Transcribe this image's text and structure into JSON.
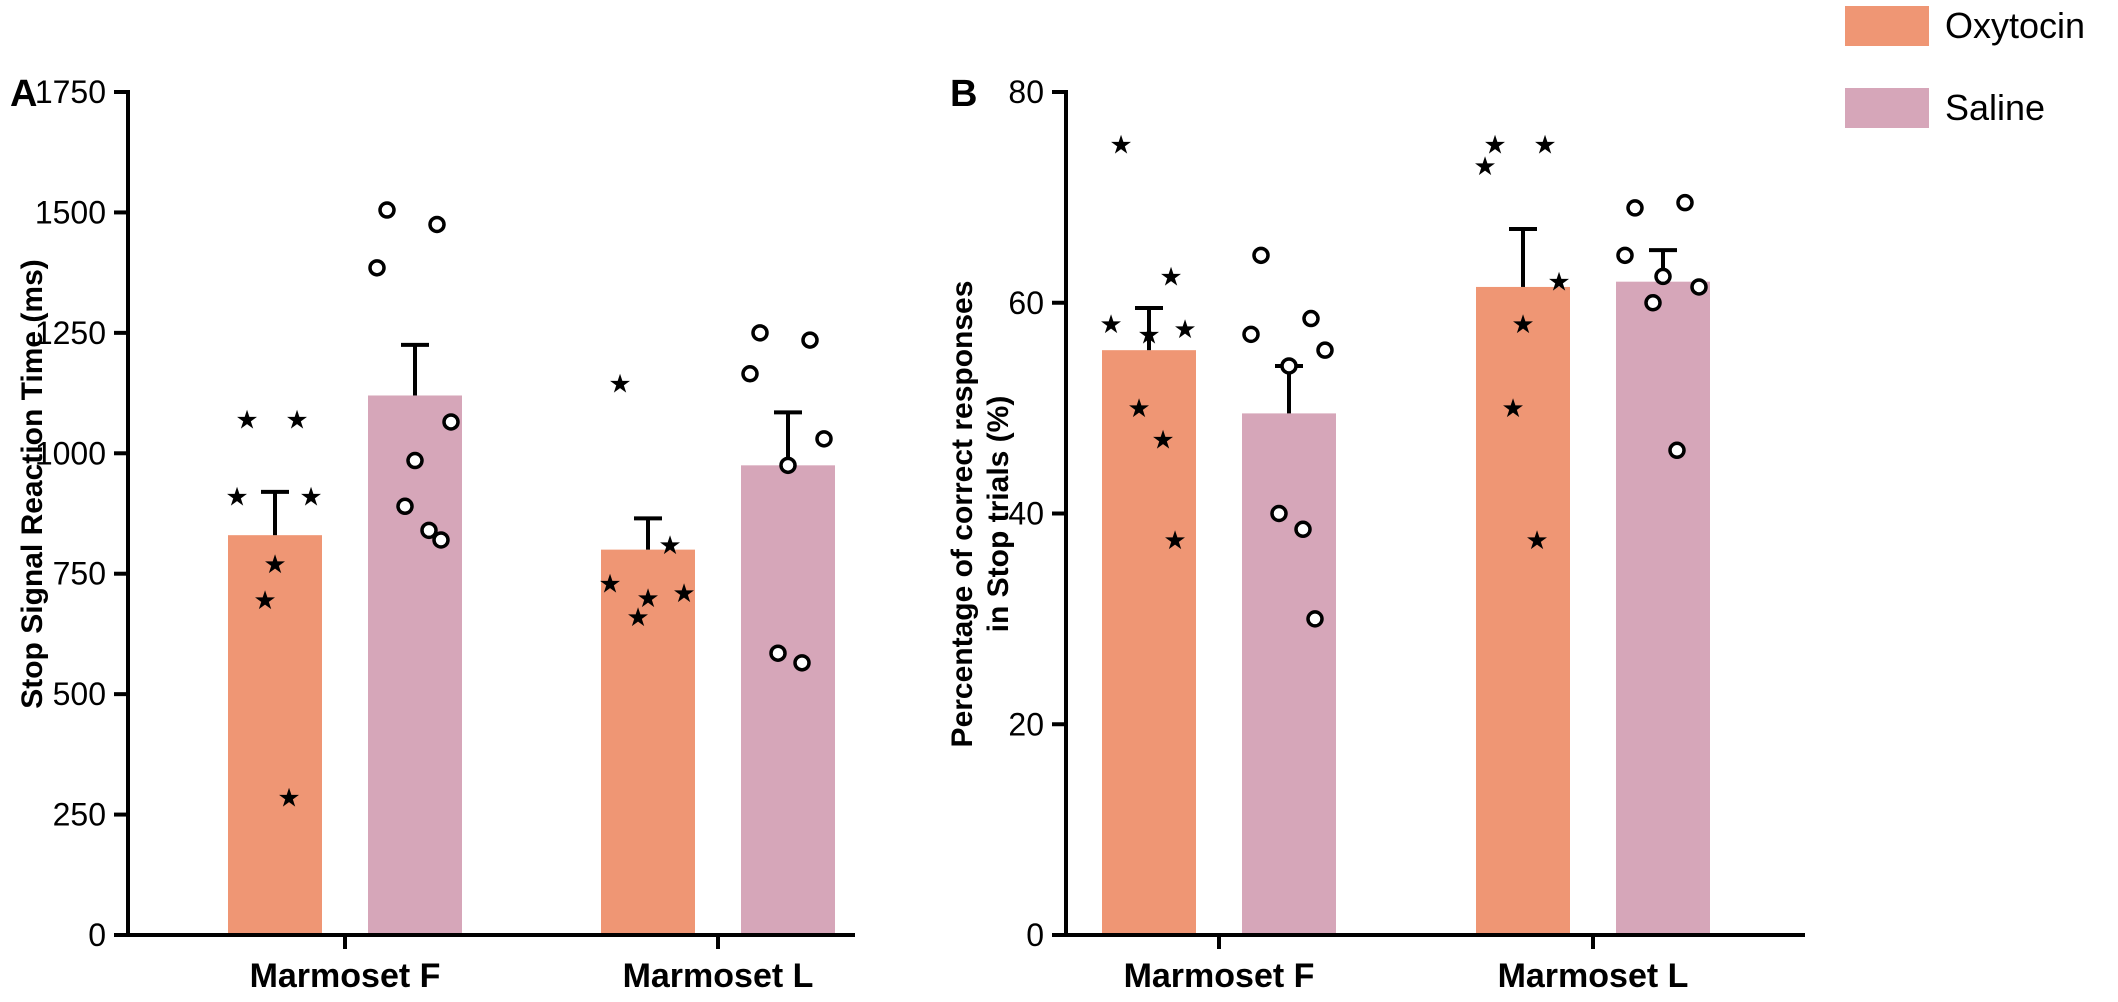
{
  "legend": [
    {
      "label": "Oxytocin",
      "color": "#ef9674"
    },
    {
      "label": "Saline",
      "color": "#d6a6b9"
    }
  ],
  "chart_data": [
    {
      "type": "bar",
      "panel": "A",
      "categories": [
        "Marmoset F",
        "Marmoset L"
      ],
      "ylabel": "Stop Signal Reaction Time (ms)",
      "ylim": [
        0,
        1750
      ],
      "yticks": [
        0,
        250,
        500,
        750,
        1000,
        1250,
        1500,
        1750
      ],
      "series": [
        {
          "name": "Oxytocin",
          "color": "#ef9674",
          "marker": "star",
          "values": [
            830,
            800
          ],
          "errors": [
            90,
            65
          ],
          "points": [
            [
              1070,
              1070,
              910,
              910,
              770,
              695,
              285
            ],
            [
              1145,
              810,
              730,
              710,
              700,
              660
            ]
          ]
        },
        {
          "name": "Saline",
          "color": "#d6a6b9",
          "marker": "circle",
          "values": [
            1120,
            975
          ],
          "errors": [
            105,
            110
          ],
          "points": [
            [
              1505,
              1475,
              1385,
              1065,
              985,
              890,
              840,
              820
            ],
            [
              1250,
              1235,
              1165,
              1030,
              975,
              585,
              565
            ]
          ]
        }
      ]
    },
    {
      "type": "bar",
      "panel": "B",
      "categories": [
        "Marmoset F",
        "Marmoset L"
      ],
      "ylabel": "Percentage of correct responses in Stop trials (%)",
      "ylim": [
        0,
        80
      ],
      "yticks": [
        0,
        20,
        40,
        60,
        80
      ],
      "series": [
        {
          "name": "Oxytocin",
          "color": "#ef9674",
          "marker": "star",
          "values": [
            55.5,
            61.5
          ],
          "errors": [
            4,
            5.5
          ],
          "points": [
            [
              75,
              62.5,
              58,
              57.5,
              57,
              50,
              47,
              37.5
            ],
            [
              75,
              75,
              73,
              62,
              58,
              50,
              37.5
            ]
          ]
        },
        {
          "name": "Saline",
          "color": "#d6a6b9",
          "marker": "circle",
          "values": [
            49.5,
            62
          ],
          "errors": [
            4.5,
            3
          ],
          "points": [
            [
              64.5,
              58.5,
              57,
              55.5,
              54,
              40,
              38.5,
              30
            ],
            [
              69,
              69.5,
              64.5,
              61.5,
              62.5,
              60,
              46
            ]
          ]
        }
      ]
    }
  ]
}
